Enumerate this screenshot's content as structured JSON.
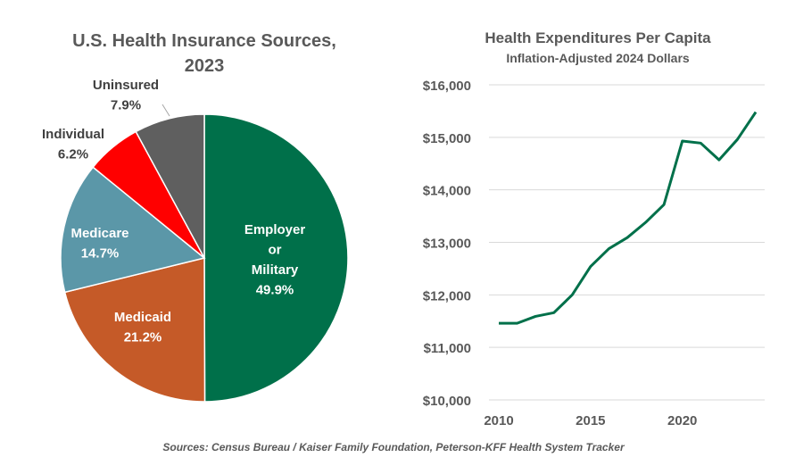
{
  "chart_data": [
    {
      "type": "pie",
      "title": "U.S. Health Insurance Sources, 2023",
      "title_lines": [
        "U.S. Health Insurance Sources,",
        "2023"
      ],
      "slices": [
        {
          "label": "Employer or Military",
          "label_lines": [
            "Employer",
            "or",
            "Military"
          ],
          "value": 49.9,
          "value_label": "49.9%",
          "color": "#00704A"
        },
        {
          "label": "Medicaid",
          "label_lines": [
            "Medicaid"
          ],
          "value": 21.2,
          "value_label": "21.2%",
          "color": "#C55A28"
        },
        {
          "label": "Medicare",
          "label_lines": [
            "Medicare"
          ],
          "value": 14.7,
          "value_label": "14.7%",
          "color": "#5B97A8"
        },
        {
          "label": "Individual",
          "label_lines": [
            "Individual"
          ],
          "value": 6.2,
          "value_label": "6.2%",
          "color": "#FF0000"
        },
        {
          "label": "Uninsured",
          "label_lines": [
            "Uninsured"
          ],
          "value": 7.9,
          "value_label": "7.9%",
          "color": "#5F5F5F"
        }
      ]
    },
    {
      "type": "line",
      "title": "Health Expenditures Per Capita",
      "subtitle": "Inflation-Adjusted 2024 Dollars",
      "x": [
        2010,
        2011,
        2012,
        2013,
        2014,
        2015,
        2016,
        2017,
        2018,
        2019,
        2020,
        2021,
        2022,
        2023,
        2024
      ],
      "series": [
        {
          "values": [
            11460,
            11460,
            11590,
            11660,
            12000,
            12540,
            12880,
            13090,
            13380,
            13720,
            14930,
            14890,
            14570,
            14960,
            15480
          ],
          "color": "#00704A"
        }
      ],
      "ylim": [
        10000,
        16000
      ],
      "yticks": [
        "$10,000",
        "$11,000",
        "$12,000",
        "$13,000",
        "$14,000",
        "$15,000",
        "$16,000"
      ],
      "xticks": [
        "2010",
        "2015",
        "2020"
      ],
      "grid": true
    }
  ],
  "source": "Sources: Census Bureau / Kaiser Family Foundation, Peterson-KFF Health System Tracker"
}
